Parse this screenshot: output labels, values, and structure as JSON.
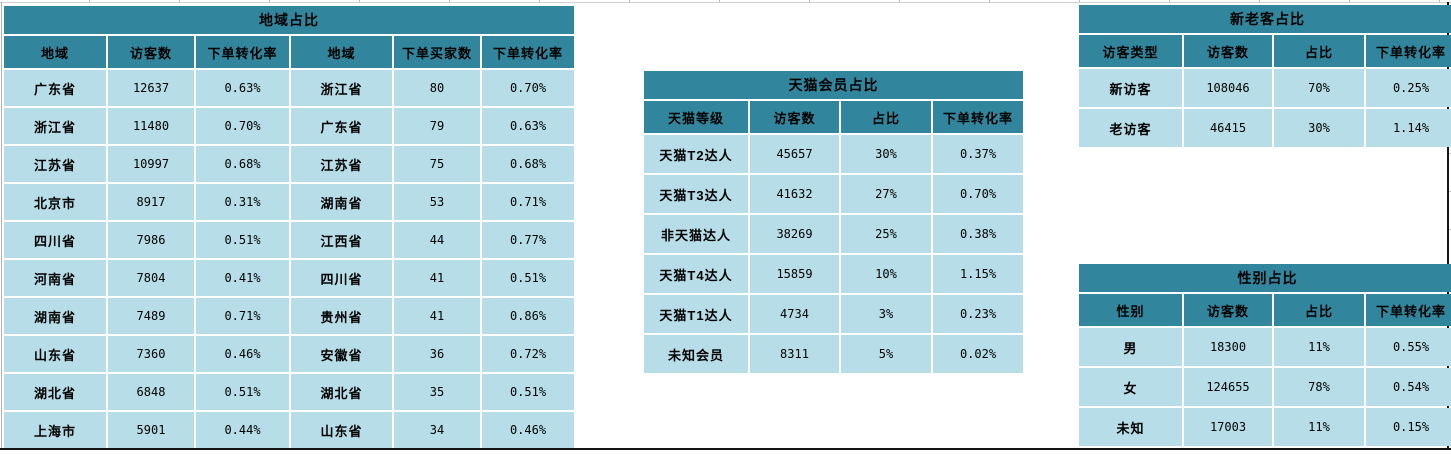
{
  "colors": {
    "header_teal": "#31859C",
    "cell_blue": "#B7DEE8",
    "report_border": "#141414"
  },
  "tables": {
    "region": {
      "title": "地域占比",
      "headers": [
        "地域",
        "访客数",
        "下单转化率",
        "地域",
        "下单买家数",
        "下单转化率"
      ],
      "rows": [
        [
          "广东省",
          "12637",
          "0.63%",
          "浙江省",
          "80",
          "0.70%"
        ],
        [
          "浙江省",
          "11480",
          "0.70%",
          "广东省",
          "79",
          "0.63%"
        ],
        [
          "江苏省",
          "10997",
          "0.68%",
          "江苏省",
          "75",
          "0.68%"
        ],
        [
          "北京市",
          "8917",
          "0.31%",
          "湖南省",
          "53",
          "0.71%"
        ],
        [
          "四川省",
          "7986",
          "0.51%",
          "江西省",
          "44",
          "0.77%"
        ],
        [
          "河南省",
          "7804",
          "0.41%",
          "四川省",
          "41",
          "0.51%"
        ],
        [
          "湖南省",
          "7489",
          "0.71%",
          "贵州省",
          "41",
          "0.86%"
        ],
        [
          "山东省",
          "7360",
          "0.46%",
          "安徽省",
          "36",
          "0.72%"
        ],
        [
          "湖北省",
          "6848",
          "0.51%",
          "湖北省",
          "35",
          "0.51%"
        ],
        [
          "上海市",
          "5901",
          "0.44%",
          "山东省",
          "34",
          "0.46%"
        ]
      ]
    },
    "tmall": {
      "title": "天猫会员占比",
      "headers": [
        "天猫等级",
        "访客数",
        "占比",
        "下单转化率"
      ],
      "rows": [
        [
          "天猫T2达人",
          "45657",
          "30%",
          "0.37%"
        ],
        [
          "天猫T3达人",
          "41632",
          "27%",
          "0.70%"
        ],
        [
          "非天猫达人",
          "38269",
          "25%",
          "0.38%"
        ],
        [
          "天猫T4达人",
          "15859",
          "10%",
          "1.15%"
        ],
        [
          "天猫T1达人",
          "4734",
          "3%",
          "0.23%"
        ],
        [
          "未知会员",
          "8311",
          "5%",
          "0.02%"
        ]
      ]
    },
    "visitor_type": {
      "title": "新老客占比",
      "headers": [
        "访客类型",
        "访客数",
        "占比",
        "下单转化率"
      ],
      "rows": [
        [
          "新访客",
          "108046",
          "70%",
          "0.25%"
        ],
        [
          "老访客",
          "46415",
          "30%",
          "1.14%"
        ]
      ]
    },
    "gender": {
      "title": "性别占比",
      "headers": [
        "性别",
        "访客数",
        "占比",
        "下单转化率"
      ],
      "rows": [
        [
          "男",
          "18300",
          "11%",
          "0.55%"
        ],
        [
          "女",
          "124655",
          "78%",
          "0.54%"
        ],
        [
          "未知",
          "17003",
          "11%",
          "0.15%"
        ]
      ]
    }
  }
}
